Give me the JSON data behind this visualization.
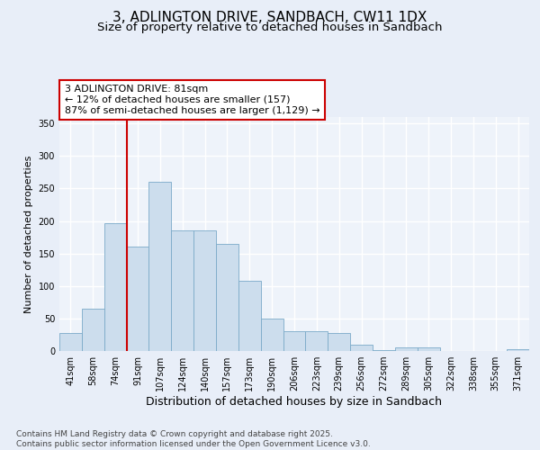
{
  "title": "3, ADLINGTON DRIVE, SANDBACH, CW11 1DX",
  "subtitle": "Size of property relative to detached houses in Sandbach",
  "xlabel": "Distribution of detached houses by size in Sandbach",
  "ylabel": "Number of detached properties",
  "categories": [
    "41sqm",
    "58sqm",
    "74sqm",
    "91sqm",
    "107sqm",
    "124sqm",
    "140sqm",
    "157sqm",
    "173sqm",
    "190sqm",
    "206sqm",
    "223sqm",
    "239sqm",
    "256sqm",
    "272sqm",
    "289sqm",
    "305sqm",
    "322sqm",
    "338sqm",
    "355sqm",
    "371sqm"
  ],
  "values": [
    28,
    65,
    197,
    160,
    260,
    185,
    185,
    165,
    108,
    50,
    30,
    30,
    28,
    10,
    2,
    5,
    6,
    0,
    0,
    0,
    3
  ],
  "bar_color": "#ccdded",
  "bar_edge_color": "#7aaac8",
  "vline_x_index": 2,
  "vline_color": "#cc0000",
  "annotation_text": "3 ADLINGTON DRIVE: 81sqm\n← 12% of detached houses are smaller (157)\n87% of semi-detached houses are larger (1,129) →",
  "annotation_box_color": "#ffffff",
  "annotation_box_edge": "#cc0000",
  "footnote": "Contains HM Land Registry data © Crown copyright and database right 2025.\nContains public sector information licensed under the Open Government Licence v3.0.",
  "ylim": [
    0,
    360
  ],
  "yticks": [
    0,
    50,
    100,
    150,
    200,
    250,
    300,
    350
  ],
  "title_fontsize": 11,
  "subtitle_fontsize": 9.5,
  "xlabel_fontsize": 9,
  "ylabel_fontsize": 8,
  "tick_fontsize": 7,
  "footnote_fontsize": 6.5,
  "bg_color": "#e8eef8",
  "plot_bg_color": "#eef3fa"
}
